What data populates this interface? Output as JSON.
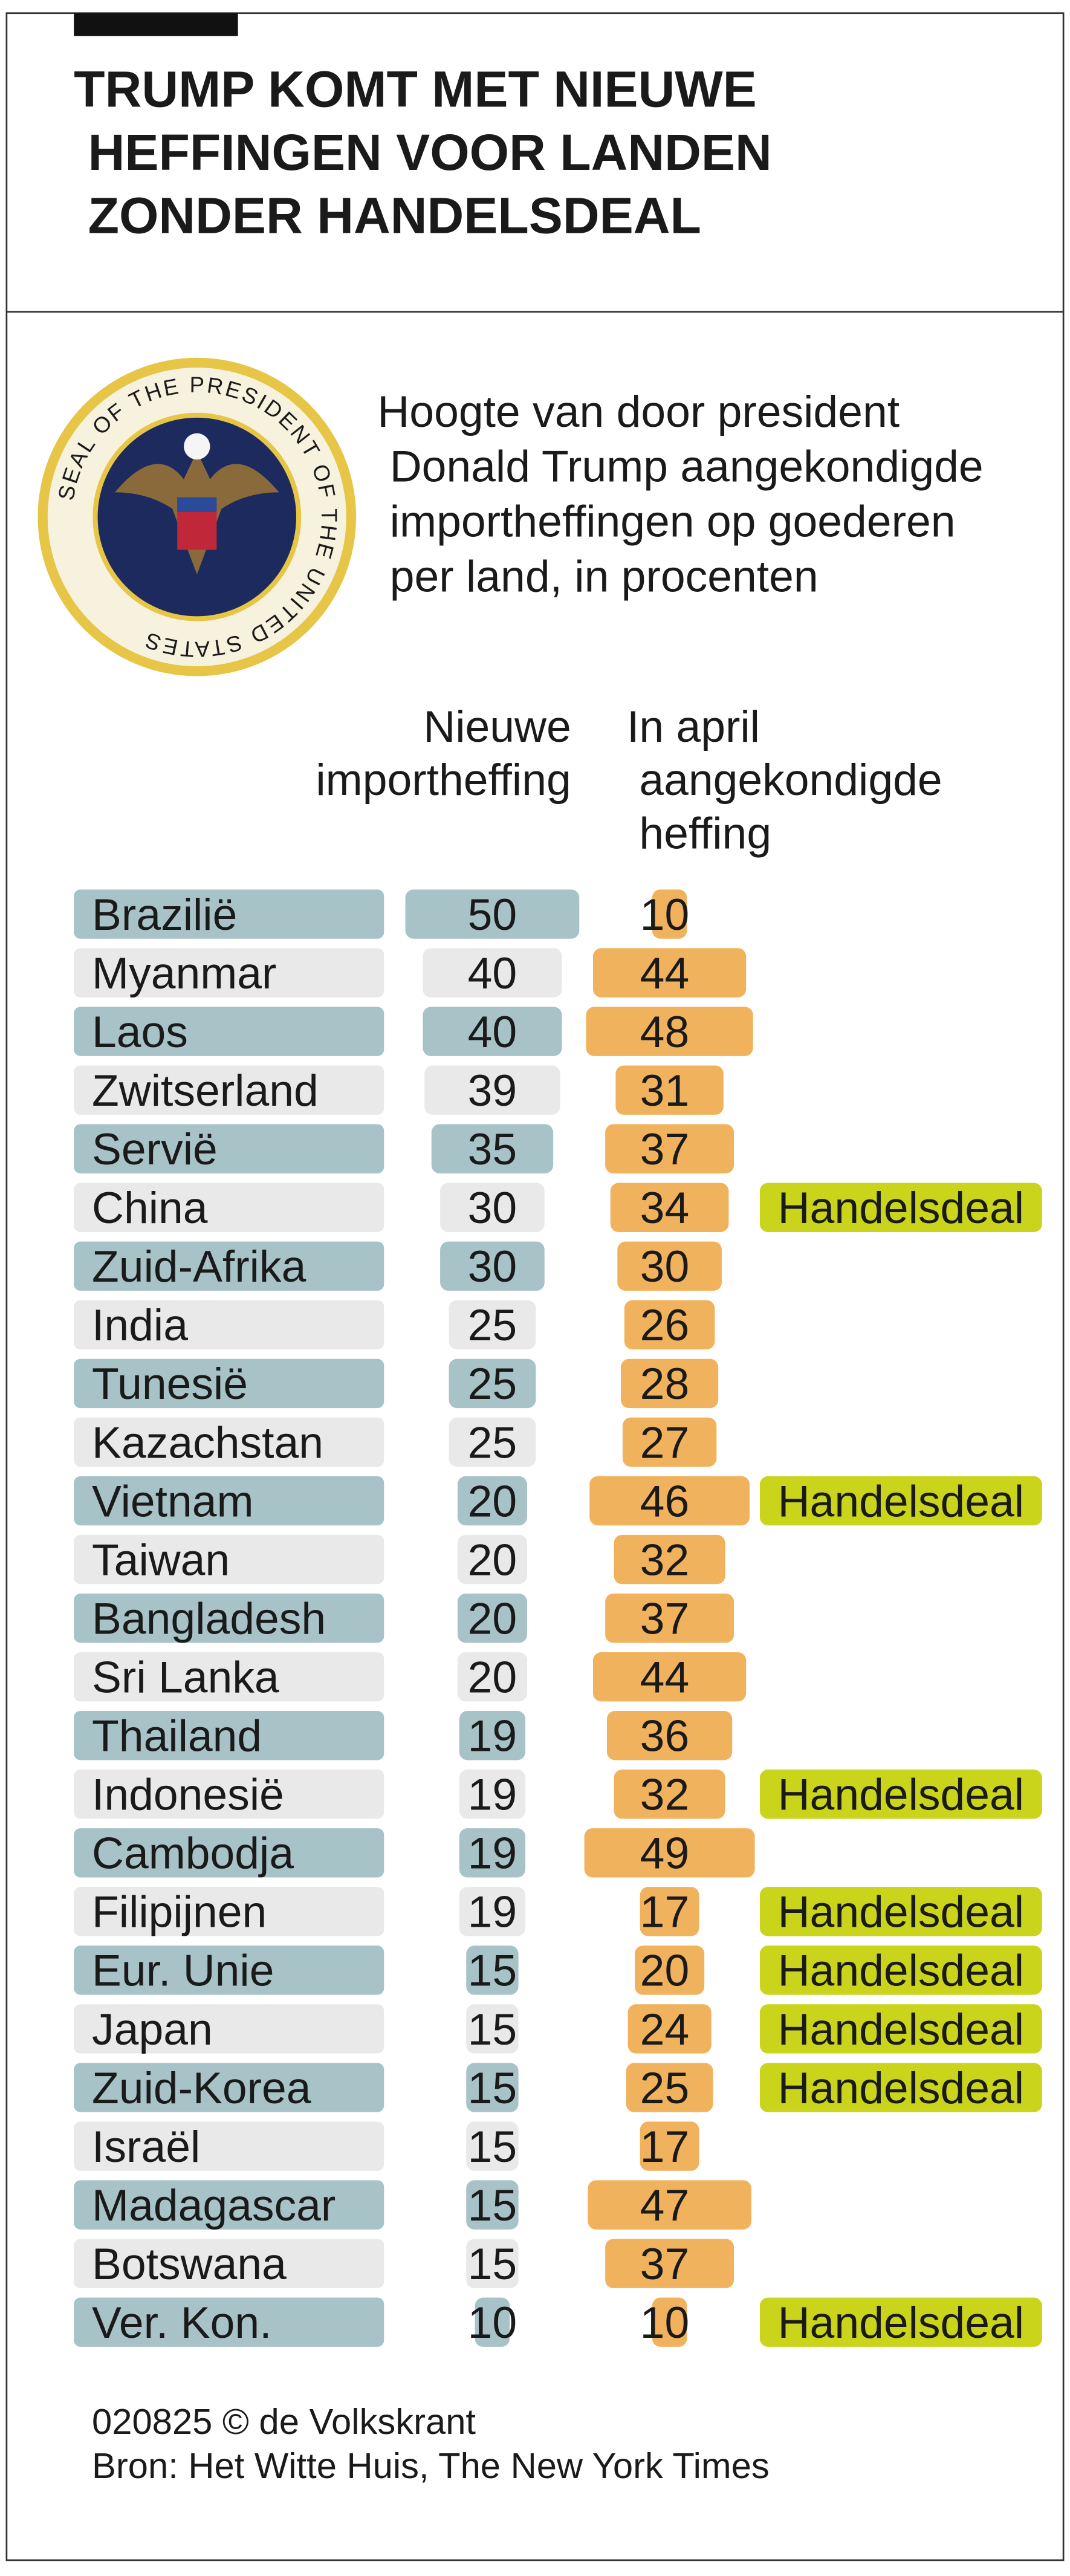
{
  "chart_data": {
    "type": "tariff-table",
    "title": "TRUMP KOMT MET NIEUWE HEFFINGEN VOOR LANDEN ZONDER HANDELSDEAL",
    "subtitle": "Hoogte van door president Donald Trump aangekondigde importheffingen op goederen per land, in procenten",
    "seal_text": "SEAL OF THE PRESIDENT OF THE UNITED STATES",
    "categories": [
      "Brazilië",
      "Myanmar",
      "Laos",
      "Zwitserland",
      "Servië",
      "China",
      "Zuid-Afrika",
      "India",
      "Tunesië",
      "Kazachstan",
      "Vietnam",
      "Taiwan",
      "Bangladesh",
      "Sri Lanka",
      "Thailand",
      "Indonesië",
      "Cambodja",
      "Filipijnen",
      "Eur. Unie",
      "Japan",
      "Zuid-Korea",
      "Israël",
      "Madagascar",
      "Botswana",
      "Ver. Kon."
    ],
    "series": [
      {
        "name": "Nieuwe importheffing",
        "color": "#a7c3c8",
        "alt_color": "#e9e9e9",
        "values": [
          50,
          40,
          40,
          39,
          35,
          30,
          30,
          25,
          25,
          25,
          20,
          20,
          20,
          20,
          19,
          19,
          19,
          19,
          15,
          15,
          15,
          15,
          15,
          15,
          10
        ]
      },
      {
        "name": "In april aangekondigde heffing",
        "color": "#f0b25d",
        "values": [
          10,
          44,
          48,
          31,
          37,
          34,
          30,
          26,
          28,
          27,
          46,
          32,
          37,
          44,
          36,
          32,
          49,
          17,
          20,
          24,
          25,
          17,
          47,
          37,
          10
        ]
      }
    ],
    "deal_color": "#c9d41a",
    "deals": [
      null,
      null,
      null,
      null,
      null,
      "Handelsdeal",
      null,
      null,
      null,
      null,
      "Handelsdeal",
      null,
      null,
      null,
      null,
      "Handelsdeal",
      null,
      "Handelsdeal",
      "Handelsdeal",
      "Handelsdeal",
      "Handelsdeal",
      null,
      null,
      null,
      "Handelsdeal"
    ],
    "credit": "020825 © de Volkskrant",
    "source": "Bron: Het Witte Huis, The New York Times"
  }
}
